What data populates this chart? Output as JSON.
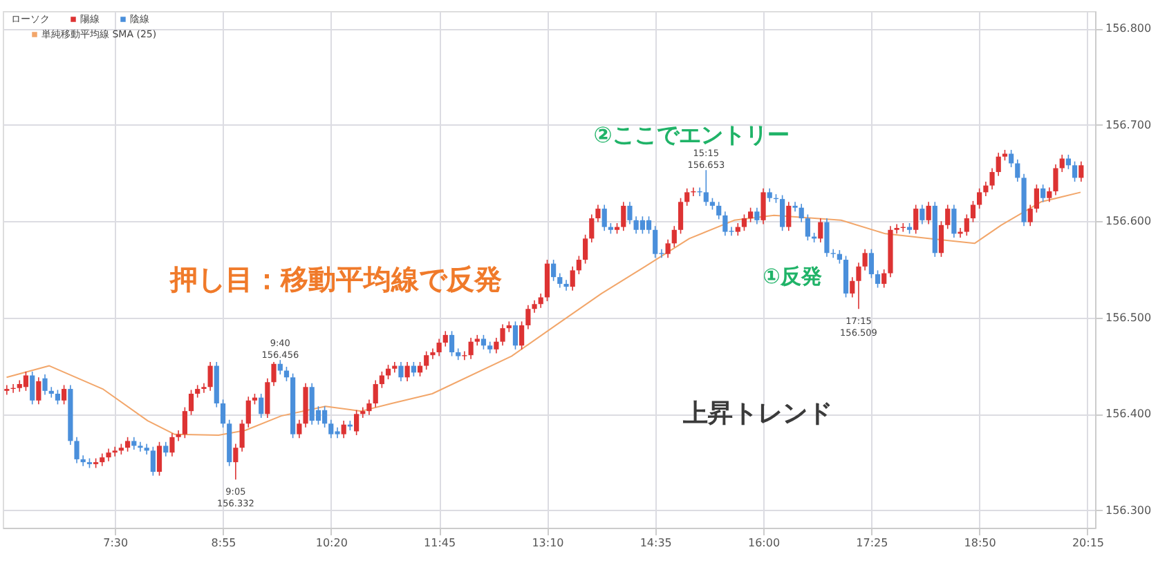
{
  "chart_data": {
    "type": "candlestick",
    "xlim": [
      6.03,
      20.35
    ],
    "ylim": [
      156.282,
      156.818
    ],
    "xticks": [
      {
        "value": 7.5,
        "label": "7:30"
      },
      {
        "value": 8.917,
        "label": "8:55"
      },
      {
        "value": 10.333,
        "label": "10:20"
      },
      {
        "value": 11.75,
        "label": "11:45"
      },
      {
        "value": 13.167,
        "label": "13:10"
      },
      {
        "value": 14.583,
        "label": "14:35"
      },
      {
        "value": 16,
        "label": "16:00"
      },
      {
        "value": 17.417,
        "label": "17:25"
      },
      {
        "value": 18.833,
        "label": "18:50"
      },
      {
        "value": 20.25,
        "label": "20:15"
      }
    ],
    "yticks": [
      {
        "value": 156.3,
        "label": "156.300"
      },
      {
        "value": 156.4,
        "label": "156.400"
      },
      {
        "value": 156.5,
        "label": "156.500"
      },
      {
        "value": 156.6,
        "label": "156.600"
      },
      {
        "value": 156.7,
        "label": "156.700"
      },
      {
        "value": 156.8,
        "label": "156.800"
      }
    ],
    "grid": true,
    "legend": "top left",
    "legend_title": "ローソク",
    "series": [
      {
        "name": "単純移動平均線 SMA (25)",
        "type": "line",
        "color": "#f2a66a",
        "x": [
          6.08,
          6.64,
          7.34,
          7.93,
          8.28,
          8.86,
          9.21,
          9.68,
          10.26,
          10.73,
          11.13,
          11.66,
          12.7,
          13.28,
          13.88,
          14.45,
          15.03,
          15.62,
          16.14,
          17.02,
          17.6,
          18.17,
          18.77,
          19.12,
          19.64,
          20.16
        ],
        "values": [
          156.438,
          156.45,
          156.426,
          156.393,
          156.379,
          156.378,
          156.383,
          156.398,
          156.408,
          156.403,
          156.411,
          156.421,
          156.46,
          156.492,
          156.525,
          156.553,
          156.582,
          156.601,
          156.606,
          156.601,
          156.587,
          156.582,
          156.577,
          156.596,
          156.62,
          156.63
        ]
      },
      {
        "name": "陽線",
        "color": "#dd3333",
        "x": [
          6.083,
          6.167,
          6.25,
          6.333,
          6.5,
          6.833,
          7.25,
          7.333,
          7.417,
          7.5,
          7.583,
          7.667,
          8.083,
          8.25,
          8.333,
          8.417,
          8.5,
          8.583,
          8.667,
          8.75,
          9.083,
          9.167,
          9.25,
          9.333,
          9.5,
          9.583,
          9.917,
          10.0,
          10.5,
          10.667,
          10.75,
          10.833,
          10.917,
          11.0,
          11.083,
          11.167,
          11.333,
          11.5,
          11.583,
          11.667,
          11.75,
          11.833,
          12.083,
          12.167,
          12.25,
          12.5,
          12.583,
          12.667,
          12.833,
          12.917,
          13.0,
          13.083,
          13.167,
          13.5,
          13.583,
          13.667,
          13.75,
          13.833,
          14.083,
          14.167,
          14.75,
          14.833,
          14.917,
          15.0,
          15.083,
          15.667,
          15.75,
          15.833,
          16.0,
          16.333,
          16.75,
          17.167,
          17.25,
          17.333,
          17.583,
          17.667,
          17.75,
          17.833,
          18.0,
          18.167,
          18.333,
          18.417,
          18.583,
          18.667,
          18.75,
          18.833,
          18.917,
          19.0,
          19.083,
          19.167,
          19.5,
          19.583,
          19.75,
          19.833,
          19.917,
          20.167
        ],
        "ohlc": [
          [
            156.424,
            156.43,
            156.42,
            156.426
          ],
          [
            156.426,
            156.431,
            156.422,
            156.427
          ],
          [
            156.427,
            156.435,
            156.423,
            156.431
          ],
          [
            156.428,
            156.444,
            156.424,
            156.44
          ],
          [
            156.414,
            156.438,
            156.41,
            156.434
          ],
          [
            156.414,
            156.43,
            156.41,
            156.426
          ],
          [
            156.348,
            156.354,
            156.344,
            156.35
          ],
          [
            156.35,
            156.359,
            156.346,
            156.355
          ],
          [
            156.355,
            156.364,
            156.351,
            156.36
          ],
          [
            156.36,
            156.366,
            156.356,
            156.362
          ],
          [
            156.362,
            156.369,
            156.358,
            156.365
          ],
          [
            156.365,
            156.376,
            156.361,
            156.372
          ],
          [
            156.34,
            156.371,
            156.336,
            156.367
          ],
          [
            156.36,
            156.38,
            156.356,
            156.376
          ],
          [
            156.376,
            156.383,
            156.372,
            156.379
          ],
          [
            156.379,
            156.407,
            156.375,
            156.403
          ],
          [
            156.403,
            156.425,
            156.399,
            156.421
          ],
          [
            156.421,
            156.43,
            156.417,
            156.426
          ],
          [
            156.426,
            156.432,
            156.422,
            156.428
          ],
          [
            156.428,
            156.454,
            156.424,
            156.45
          ],
          [
            156.35,
            156.369,
            156.332,
            156.365
          ],
          [
            156.365,
            156.394,
            156.361,
            156.39
          ],
          [
            156.39,
            156.418,
            156.386,
            156.414
          ],
          [
            156.414,
            156.421,
            156.41,
            156.417
          ],
          [
            156.4,
            156.437,
            156.396,
            156.433
          ],
          [
            156.433,
            156.454,
            156.429,
            156.452
          ],
          [
            156.379,
            156.394,
            156.375,
            156.39
          ],
          [
            156.39,
            156.432,
            156.386,
            156.428
          ],
          [
            156.379,
            156.393,
            156.375,
            156.389
          ],
          [
            156.382,
            156.404,
            156.378,
            156.4
          ],
          [
            156.4,
            156.407,
            156.396,
            156.403
          ],
          [
            156.403,
            156.415,
            156.399,
            156.411
          ],
          [
            156.411,
            156.435,
            156.407,
            156.431
          ],
          [
            156.431,
            156.444,
            156.427,
            156.44
          ],
          [
            156.44,
            156.451,
            156.436,
            156.447
          ],
          [
            156.447,
            156.454,
            156.443,
            156.45
          ],
          [
            156.438,
            156.454,
            156.434,
            156.45
          ],
          [
            156.443,
            156.454,
            156.439,
            156.45
          ],
          [
            156.45,
            156.465,
            156.446,
            156.461
          ],
          [
            156.461,
            156.468,
            156.457,
            156.464
          ],
          [
            156.464,
            156.478,
            156.46,
            156.474
          ],
          [
            156.474,
            156.486,
            156.47,
            156.482
          ],
          [
            156.46,
            156.465,
            156.456,
            156.461
          ],
          [
            156.461,
            156.479,
            156.457,
            156.475
          ],
          [
            156.475,
            156.482,
            156.471,
            156.478
          ],
          [
            156.467,
            156.479,
            156.463,
            156.475
          ],
          [
            156.475,
            156.493,
            156.471,
            156.489
          ],
          [
            156.489,
            156.496,
            156.485,
            156.492
          ],
          [
            156.471,
            156.496,
            156.467,
            156.492
          ],
          [
            156.492,
            156.513,
            156.488,
            156.509
          ],
          [
            156.509,
            156.518,
            156.505,
            156.514
          ],
          [
            156.514,
            156.525,
            156.51,
            156.521
          ],
          [
            156.521,
            156.56,
            156.517,
            156.556
          ],
          [
            156.532,
            156.553,
            156.528,
            156.549
          ],
          [
            156.549,
            156.564,
            156.545,
            156.56
          ],
          [
            156.56,
            156.586,
            156.556,
            156.582
          ],
          [
            156.582,
            156.607,
            156.578,
            156.603
          ],
          [
            156.603,
            156.617,
            156.599,
            156.613
          ],
          [
            156.591,
            156.598,
            156.587,
            156.594
          ],
          [
            156.594,
            156.62,
            156.59,
            156.616
          ],
          [
            156.566,
            156.581,
            156.562,
            156.577
          ],
          [
            156.577,
            156.595,
            156.573,
            156.591
          ],
          [
            156.591,
            156.624,
            156.587,
            156.62
          ],
          [
            156.62,
            156.634,
            156.616,
            156.63
          ],
          [
            156.63,
            156.635,
            156.626,
            156.631
          ],
          [
            156.589,
            156.598,
            156.585,
            156.594
          ],
          [
            156.594,
            156.607,
            156.59,
            156.603
          ],
          [
            156.603,
            156.614,
            156.599,
            156.61
          ],
          [
            156.601,
            156.634,
            156.597,
            156.63
          ],
          [
            156.594,
            156.62,
            156.59,
            156.616
          ],
          [
            156.582,
            156.603,
            156.578,
            156.599
          ],
          [
            156.525,
            156.542,
            156.521,
            156.538
          ],
          [
            156.538,
            156.557,
            156.509,
            156.553
          ],
          [
            156.553,
            156.571,
            156.549,
            156.567
          ],
          [
            156.535,
            156.55,
            156.531,
            156.546
          ],
          [
            156.546,
            156.595,
            156.542,
            156.591
          ],
          [
            156.591,
            156.597,
            156.587,
            156.593
          ],
          [
            156.593,
            156.598,
            156.589,
            156.594
          ],
          [
            156.591,
            156.617,
            156.587,
            156.613
          ],
          [
            156.601,
            156.62,
            156.597,
            156.616
          ],
          [
            156.567,
            156.6,
            156.563,
            156.596
          ],
          [
            156.596,
            156.617,
            156.592,
            156.613
          ],
          [
            156.587,
            156.593,
            156.583,
            156.589
          ],
          [
            156.589,
            156.607,
            156.585,
            156.603
          ],
          [
            156.603,
            156.621,
            156.599,
            156.617
          ],
          [
            156.617,
            156.634,
            156.613,
            156.63
          ],
          [
            156.63,
            156.641,
            156.626,
            156.637
          ],
          [
            156.637,
            156.655,
            156.633,
            156.651
          ],
          [
            156.651,
            156.671,
            156.647,
            156.667
          ],
          [
            156.667,
            156.674,
            156.663,
            156.67
          ],
          [
            156.599,
            156.617,
            156.595,
            156.613
          ],
          [
            156.613,
            156.638,
            156.609,
            156.634
          ],
          [
            156.624,
            156.635,
            156.62,
            156.631
          ],
          [
            156.631,
            156.659,
            156.627,
            156.655
          ],
          [
            156.655,
            156.669,
            156.651,
            156.665
          ],
          [
            156.645,
            156.662,
            156.641,
            156.658
          ]
        ]
      },
      {
        "name": "陰線",
        "color": "#4a8fdb",
        "x": [
          6.417,
          6.583,
          6.667,
          6.75,
          6.917,
          7.0,
          7.083,
          7.167,
          7.75,
          7.833,
          7.917,
          8.0,
          8.167,
          8.833,
          8.917,
          9.0,
          9.417,
          9.667,
          9.75,
          9.833,
          10.083,
          10.167,
          10.25,
          10.333,
          10.417,
          10.583,
          11.25,
          11.417,
          11.917,
          12.0,
          12.333,
          12.417,
          12.75,
          13.25,
          13.333,
          13.417,
          13.917,
          14.0,
          14.25,
          14.333,
          14.417,
          14.5,
          14.583,
          14.667,
          15.167,
          15.25,
          15.333,
          15.417,
          15.5,
          15.583,
          15.917,
          16.083,
          16.167,
          16.25,
          16.417,
          16.5,
          16.583,
          16.667,
          16.833,
          16.917,
          17.0,
          17.083,
          17.417,
          17.5,
          17.917,
          18.083,
          18.25,
          18.5,
          19.25,
          19.333,
          19.417,
          19.667,
          20.0,
          20.083
        ],
        "ohlc": [
          [
            156.44,
            156.444,
            156.41,
            156.414
          ],
          [
            156.437,
            156.441,
            156.42,
            156.424
          ],
          [
            156.424,
            156.428,
            156.417,
            156.421
          ],
          [
            156.421,
            156.425,
            156.41,
            156.414
          ],
          [
            156.426,
            156.43,
            156.368,
            156.372
          ],
          [
            156.372,
            156.376,
            156.349,
            156.353
          ],
          [
            156.353,
            156.357,
            156.346,
            156.35
          ],
          [
            156.35,
            156.354,
            156.344,
            156.348
          ],
          [
            156.372,
            156.376,
            156.363,
            156.367
          ],
          [
            156.367,
            156.371,
            156.361,
            156.365
          ],
          [
            156.365,
            156.369,
            156.358,
            156.362
          ],
          [
            156.362,
            156.366,
            156.336,
            156.34
          ],
          [
            156.367,
            156.371,
            156.356,
            156.36
          ],
          [
            156.45,
            156.454,
            156.407,
            156.411
          ],
          [
            156.411,
            156.415,
            156.386,
            156.39
          ],
          [
            156.39,
            156.394,
            156.346,
            156.35
          ],
          [
            156.417,
            156.421,
            156.396,
            156.4
          ],
          [
            156.452,
            156.456,
            156.441,
            156.445
          ],
          [
            156.445,
            156.449,
            156.434,
            156.438
          ],
          [
            156.438,
            156.442,
            156.375,
            156.379
          ],
          [
            156.428,
            156.432,
            156.389,
            156.393
          ],
          [
            156.404,
            156.408,
            156.389,
            156.393
          ],
          [
            156.404,
            156.408,
            156.386,
            156.39
          ],
          [
            156.39,
            156.394,
            156.375,
            156.379
          ],
          [
            156.382,
            156.386,
            156.375,
            156.379
          ],
          [
            156.389,
            156.393,
            156.383,
            156.387
          ],
          [
            156.45,
            156.454,
            156.434,
            156.438
          ],
          [
            156.45,
            156.454,
            156.439,
            156.443
          ],
          [
            156.482,
            156.486,
            156.46,
            156.464
          ],
          [
            156.464,
            156.468,
            156.456,
            156.46
          ],
          [
            156.478,
            156.482,
            156.467,
            156.471
          ],
          [
            156.471,
            156.475,
            156.463,
            156.467
          ],
          [
            156.492,
            156.496,
            156.467,
            156.471
          ],
          [
            156.556,
            156.56,
            156.538,
            156.542
          ],
          [
            156.542,
            156.546,
            156.531,
            156.535
          ],
          [
            156.535,
            156.539,
            156.528,
            156.532
          ],
          [
            156.613,
            156.617,
            156.59,
            156.594
          ],
          [
            156.594,
            156.598,
            156.587,
            156.591
          ],
          [
            156.616,
            156.62,
            156.597,
            156.601
          ],
          [
            156.601,
            156.605,
            156.587,
            156.591
          ],
          [
            156.601,
            156.605,
            156.587,
            156.591
          ],
          [
            156.601,
            156.605,
            156.587,
            156.591
          ],
          [
            156.591,
            156.595,
            156.562,
            156.566
          ],
          [
            156.567,
            156.571,
            156.562,
            156.566
          ],
          [
            156.631,
            156.635,
            156.626,
            156.63
          ],
          [
            156.63,
            156.653,
            156.616,
            156.62
          ],
          [
            156.62,
            156.624,
            156.612,
            156.616
          ],
          [
            156.616,
            156.62,
            156.602,
            156.606
          ],
          [
            156.606,
            156.61,
            156.585,
            156.589
          ],
          [
            156.59,
            156.594,
            156.585,
            156.589
          ],
          [
            156.61,
            156.614,
            156.597,
            156.601
          ],
          [
            156.63,
            156.634,
            156.62,
            156.624
          ],
          [
            156.624,
            156.628,
            156.619,
            156.623
          ],
          [
            156.623,
            156.627,
            156.59,
            156.594
          ],
          [
            156.616,
            156.62,
            156.61,
            156.614
          ],
          [
            156.614,
            156.618,
            156.599,
            156.603
          ],
          [
            156.603,
            156.607,
            156.58,
            156.584
          ],
          [
            156.584,
            156.588,
            156.578,
            156.582
          ],
          [
            156.599,
            156.603,
            156.563,
            156.567
          ],
          [
            156.567,
            156.571,
            156.562,
            156.566
          ],
          [
            156.566,
            156.57,
            156.556,
            156.56
          ],
          [
            156.56,
            156.564,
            156.521,
            156.525
          ],
          [
            156.567,
            156.571,
            156.541,
            156.545
          ],
          [
            156.545,
            156.549,
            156.531,
            156.535
          ],
          [
            156.594,
            156.598,
            156.587,
            156.591
          ],
          [
            156.613,
            156.617,
            156.597,
            156.601
          ],
          [
            156.616,
            156.62,
            156.563,
            156.567
          ],
          [
            156.613,
            156.617,
            156.583,
            156.587
          ],
          [
            156.67,
            156.674,
            156.656,
            156.66
          ],
          [
            156.66,
            156.664,
            156.641,
            156.645
          ],
          [
            156.645,
            156.649,
            156.595,
            156.599
          ],
          [
            156.634,
            156.638,
            156.62,
            156.624
          ],
          [
            156.665,
            156.669,
            156.654,
            156.658
          ],
          [
            156.658,
            156.662,
            156.641,
            156.645
          ]
        ]
      }
    ],
    "annotations": [
      "押し目：移動平均線で反発",
      "②ここでエントリー",
      "①反発",
      "上昇トレンド",
      {
        "text": "9:05\n156.332",
        "x": 9.083,
        "y": 156.332
      },
      {
        "text": "9:40\n156.456",
        "x": 9.667,
        "y": 156.456
      },
      {
        "text": "15:15\n156.653",
        "x": 15.25,
        "y": 156.653
      },
      {
        "text": "17:15\n156.509",
        "x": 17.25,
        "y": 156.509
      }
    ]
  }
}
